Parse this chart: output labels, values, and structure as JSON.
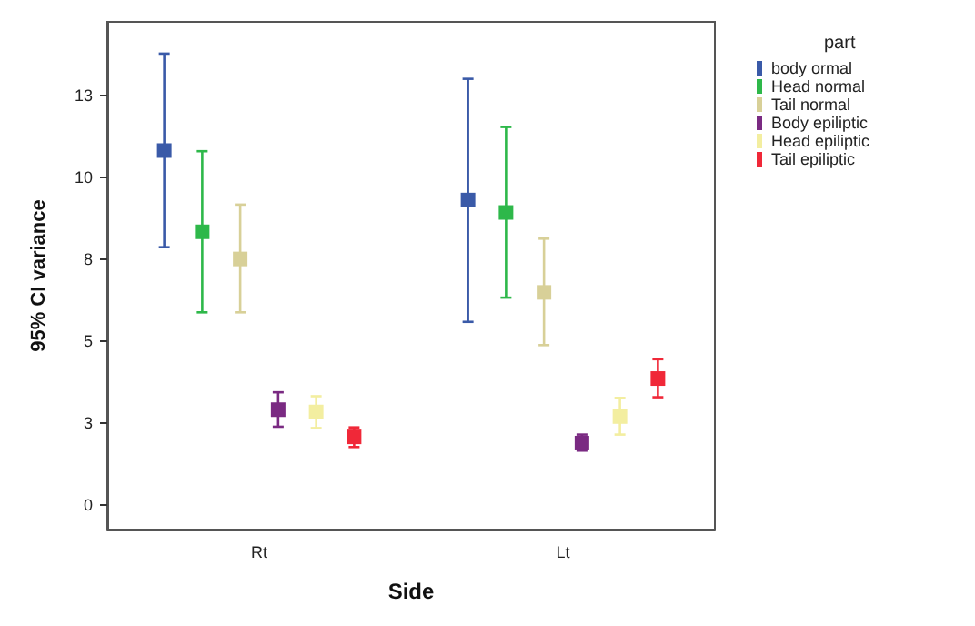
{
  "chart_data": {
    "type": "scatter",
    "xlabel": "Side",
    "ylabel": "95% CI variance",
    "legend_title": "part",
    "categories": [
      "Rt",
      "Lt"
    ],
    "series": [
      {
        "name": "body ormal",
        "color": "#3a5aa8",
        "values": [
          10.82,
          9.31
        ],
        "errors": [
          [
            7.87,
            13.78
          ],
          [
            5.59,
            13.01
          ]
        ]
      },
      {
        "name": "Head normal",
        "color": "#2eb84a",
        "values": [
          8.34,
          8.93
        ],
        "errors": [
          [
            5.88,
            10.8
          ],
          [
            6.33,
            11.54
          ]
        ]
      },
      {
        "name": "Tail normal",
        "color": "#d8d098",
        "values": [
          7.51,
          6.49
        ],
        "errors": [
          [
            5.88,
            9.17
          ],
          [
            4.88,
            8.13
          ]
        ]
      },
      {
        "name": "Body epiliptic",
        "color": "#7a2a82",
        "values": [
          2.91,
          1.89
        ],
        "errors": [
          [
            2.39,
            3.44
          ],
          [
            1.66,
            2.15
          ]
        ]
      },
      {
        "name": "Head epiliptic",
        "color": "#f3eea0",
        "values": [
          2.84,
          2.7
        ],
        "errors": [
          [
            2.35,
            3.32
          ],
          [
            2.15,
            3.27
          ]
        ]
      },
      {
        "name": "Tail epiliptic",
        "color": "#f02838",
        "values": [
          2.08,
          3.86
        ],
        "errors": [
          [
            1.77,
            2.37
          ],
          [
            3.29,
            4.45
          ]
        ]
      }
    ],
    "ylim": [
      -0.75,
      14.75
    ],
    "yticks": [
      {
        "value": 0,
        "label": "0"
      },
      {
        "value": 2.5,
        "label": "3"
      },
      {
        "value": 5,
        "label": "5"
      },
      {
        "value": 7.5,
        "label": "8"
      },
      {
        "value": 10,
        "label": "10"
      },
      {
        "value": 12.5,
        "label": "13"
      }
    ],
    "marker": "square",
    "grid": false,
    "legend": "top right"
  }
}
